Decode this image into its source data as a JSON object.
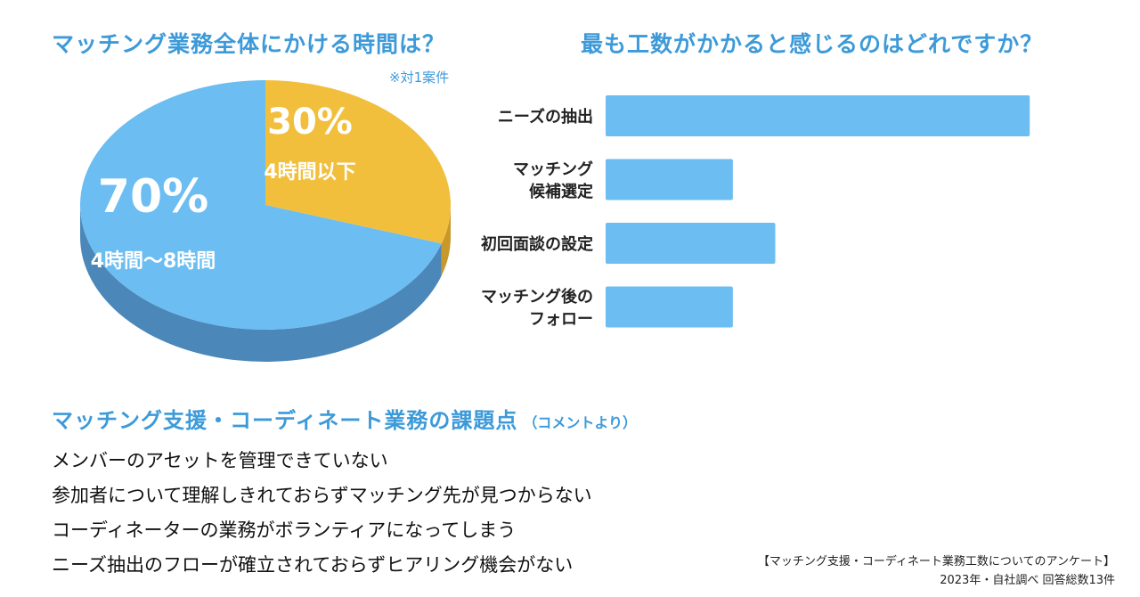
{
  "colors": {
    "accent": "#3d9ad9",
    "pie_blue_top": "#6bbdf2",
    "pie_blue_side": "#4b87b8",
    "pie_yellow_top": "#f2bf3c",
    "pie_yellow_side": "#c8982a",
    "bar": "#6bbdf2",
    "text": "#111111"
  },
  "pie": {
    "title": "マッチング業務全体にかける時間は？",
    "note": "※対1案件"
  },
  "bars": {
    "title": "最も工数がかかると感じるのはどれですか？"
  },
  "chart_data": [
    {
      "type": "pie",
      "title": "マッチング業務全体にかける時間は？",
      "slices": [
        {
          "label": "4時間〜8時間",
          "percent_label": "70%",
          "value": 70,
          "color": "#6bbdf2"
        },
        {
          "label": "4時間以下",
          "percent_label": "30%",
          "value": 30,
          "color": "#f2bf3c"
        }
      ]
    },
    {
      "type": "bar",
      "orientation": "horizontal",
      "title": "最も工数がかかると感じるのはどれですか？",
      "categories": [
        [
          "ニーズの抽出"
        ],
        [
          "マッチング",
          "候補選定"
        ],
        [
          "初回面談の設定"
        ],
        [
          "マッチング後の",
          "フォロー"
        ]
      ],
      "values": [
        10,
        3,
        4,
        3
      ],
      "xlim": [
        0,
        10.5
      ]
    }
  ],
  "issues": {
    "title": "マッチング支援・コーディネート業務の課題点",
    "subtitle": "（コメントより）",
    "items": [
      "メンバーのアセットを管理できていない",
      "参加者について理解しきれておらずマッチング先が見つからない",
      "コーディネーターの業務がボランティアになってしまう",
      "ニーズ抽出のフローが確立されておらずヒアリング機会がない"
    ]
  },
  "source": {
    "line1": "【マッチング支援・コーディネート業務工数についてのアンケート】",
    "line2": "2023年・自社調べ 回答総数13件"
  }
}
